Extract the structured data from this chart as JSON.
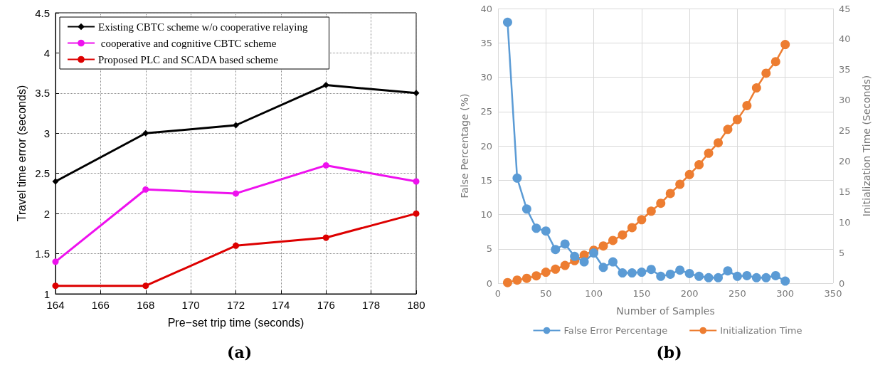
{
  "chart_data": [
    {
      "type": "line",
      "title": "(a)",
      "xlabel": "Pre−set trip time (seconds)",
      "ylabel": "Travel time error (seconds)",
      "x": [
        164,
        168,
        172,
        176,
        180
      ],
      "series": [
        {
          "name": "Existing CBTC scheme w/o cooperative relaying",
          "color": "#000000",
          "marker": "diamond",
          "values": [
            2.4,
            3.0,
            3.1,
            3.6,
            3.5
          ]
        },
        {
          "name": " cooperative and cognitive CBTC scheme",
          "color": "#ee11ee",
          "marker": "circle",
          "values": [
            1.4,
            2.3,
            2.25,
            2.6,
            2.4
          ]
        },
        {
          "name": "Proposed PLC and SCADA based scheme",
          "color": "#dd0000",
          "marker": "circle",
          "values": [
            1.1,
            1.1,
            1.6,
            1.7,
            2.0
          ]
        }
      ],
      "xlim": [
        164,
        180
      ],
      "xticks": [
        164,
        166,
        168,
        170,
        172,
        174,
        176,
        178,
        180
      ],
      "ylim": [
        1,
        4.5
      ],
      "yticks": [
        1,
        1.5,
        2,
        2.5,
        3,
        3.5,
        4,
        4.5
      ],
      "grid": true,
      "legend": "top left",
      "line_style": "solid"
    },
    {
      "type": "line",
      "title": "(b)",
      "xlabel": "Number of Samples",
      "ylabel": "False Percentage (%)",
      "y2label": "Initialization Time (Seconds)",
      "x": [
        10,
        20,
        30,
        40,
        50,
        60,
        70,
        80,
        90,
        100,
        110,
        120,
        130,
        140,
        150,
        160,
        170,
        180,
        190,
        200,
        210,
        220,
        230,
        240,
        250,
        260,
        270,
        280,
        290,
        300
      ],
      "series": [
        {
          "name": "False Error Percentage",
          "color": "#5b9bd5",
          "values": [
            38,
            15.3,
            10.8,
            8,
            7.6,
            4.9,
            5.7,
            3.9,
            3.1,
            4.4,
            2.3,
            3.1,
            1.5,
            1.5,
            1.6,
            2.0,
            1.0,
            1.3,
            1.9,
            1.4,
            1.0,
            0.8,
            0.8,
            1.8,
            1.0,
            1.1,
            0.8,
            0.8,
            1.1,
            0.3
          ]
        },
        {
          "name": "Initialization Time",
          "color": "#ed7d31",
          "axis": "y2",
          "values": [
            0.1,
            0.5,
            0.8,
            1.2,
            1.8,
            2.3,
            2.9,
            3.7,
            4.6,
            5.4,
            6.1,
            7.0,
            7.9,
            9.1,
            10.4,
            11.8,
            13.1,
            14.7,
            16.2,
            17.8,
            19.4,
            21.3,
            23.0,
            25.2,
            26.8,
            29.1,
            32.0,
            34.4,
            36.3,
            39.1
          ]
        }
      ],
      "xlim": [
        0,
        350
      ],
      "xticks": [
        0,
        50,
        100,
        150,
        200,
        250,
        300,
        350
      ],
      "ylim": [
        0,
        40
      ],
      "yticks": [
        0,
        5,
        10,
        15,
        20,
        25,
        30,
        35,
        40
      ],
      "y2lim": [
        0,
        45
      ],
      "y2ticks": [
        0,
        5,
        10,
        15,
        20,
        25,
        30,
        35,
        40,
        45
      ],
      "grid": true,
      "legend": "bottom",
      "marker": "circle",
      "line_style": "solid"
    }
  ]
}
